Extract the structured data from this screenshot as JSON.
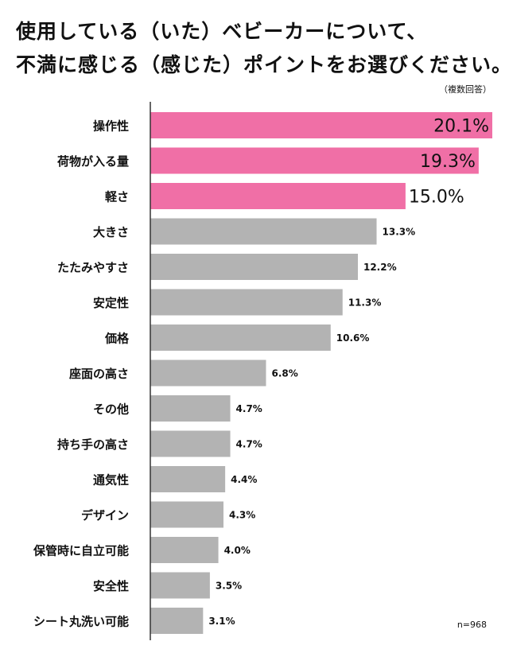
{
  "header": {
    "title_line1": "使用している（いた）ベビーカーについて、",
    "title_line2": "不満に感じる（感じた）ポイントをお選びください。",
    "note": "（複数回答）"
  },
  "sample_size": "n=968",
  "colors": {
    "highlight": "#f06fa6",
    "normal": "#b3b3b3",
    "axis": "#333333"
  },
  "chart_data": {
    "type": "bar",
    "orientation": "horizontal",
    "title": "使用している（いた）ベビーカーについて、不満に感じる（感じた）ポイントをお選びください。",
    "subtitle": "（複数回答）",
    "unit": "%",
    "categories": [
      "操作性",
      "荷物が入る量",
      "軽さ",
      "大きさ",
      "たたみやすさ",
      "安定性",
      "価格",
      "座面の高さ",
      "その他",
      "持ち手の高さ",
      "通気性",
      "デザイン",
      "保管時に自立可能",
      "安全性",
      "シート丸洗い可能"
    ],
    "values": [
      20.1,
      19.3,
      15.0,
      13.3,
      12.2,
      11.3,
      10.6,
      6.8,
      4.7,
      4.7,
      4.4,
      4.3,
      4.0,
      3.5,
      3.1
    ],
    "value_labels": [
      "20.1%",
      "19.3%",
      "15.0%",
      "13.3%",
      "12.2%",
      "11.3%",
      "10.6%",
      "6.8%",
      "4.7%",
      "4.7%",
      "4.4%",
      "4.3%",
      "4.0%",
      "3.5%",
      "3.1%"
    ],
    "highlighted_count": 3,
    "xlim": [
      0,
      20.1
    ],
    "grid": false
  }
}
